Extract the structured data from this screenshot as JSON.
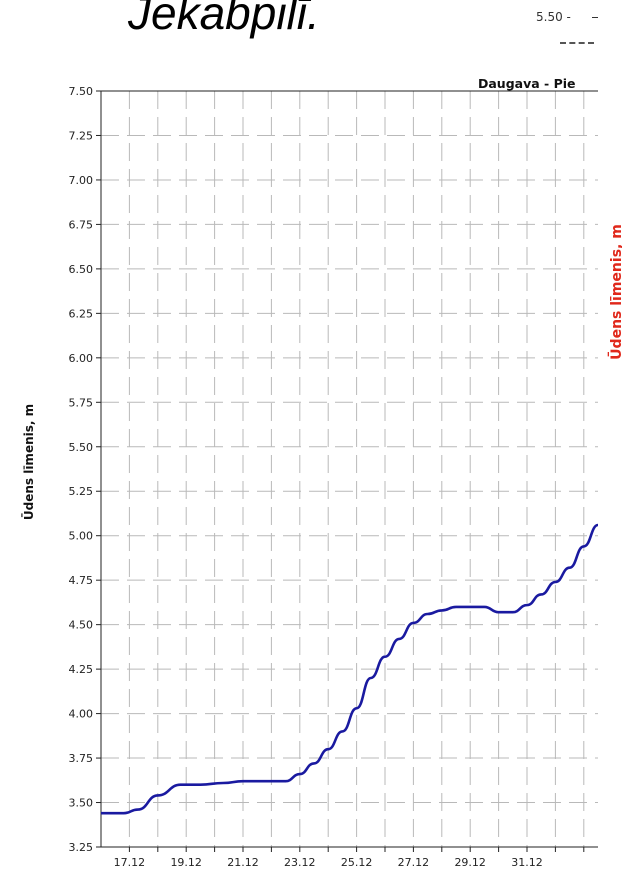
{
  "heading": "Jekabpilī.",
  "inset": {
    "tick_label": "5.50 -"
  },
  "chart_data": {
    "type": "line",
    "title": "Daugava - Pie",
    "ylabel": "Ūdens līmenis, m",
    "ylabel_right": "Ūdens līmenis, m",
    "xlabel": "",
    "ylim": [
      3.25,
      7.5
    ],
    "yticks": [
      "7.50",
      "7.25",
      "7.00",
      "6.75",
      "6.50",
      "6.25",
      "6.00",
      "5.75",
      "5.50",
      "5.25",
      "5.00",
      "4.75",
      "4.50",
      "4.25",
      "4.00",
      "3.75",
      "3.50",
      "3.25"
    ],
    "xlim": [
      16.0,
      33.5
    ],
    "x_ticks": [
      {
        "x": 17,
        "label": "17.12"
      },
      {
        "x": 19,
        "label": "19.12"
      },
      {
        "x": 21,
        "label": "21.12"
      },
      {
        "x": 23,
        "label": "23.12"
      },
      {
        "x": 25,
        "label": "25.12"
      },
      {
        "x": 27,
        "label": "27.12"
      },
      {
        "x": 29,
        "label": "29.12"
      },
      {
        "x": 31,
        "label": "31.12"
      }
    ],
    "grid": true,
    "series": [
      {
        "color": "#1a1aa0",
        "x": [
          16.0,
          16.8,
          17.3,
          18.0,
          18.8,
          19.5,
          20.3,
          21.0,
          21.8,
          22.5,
          23.0,
          23.5,
          24.0,
          24.5,
          25.0,
          25.5,
          26.0,
          26.5,
          27.0,
          27.5,
          28.0,
          28.5,
          29.0,
          29.5,
          30.0,
          30.5,
          31.0,
          31.5,
          32.0,
          32.5,
          33.0,
          33.5
        ],
        "y": [
          3.44,
          3.44,
          3.46,
          3.54,
          3.6,
          3.6,
          3.61,
          3.62,
          3.62,
          3.62,
          3.66,
          3.72,
          3.8,
          3.9,
          4.03,
          4.2,
          4.32,
          4.42,
          4.51,
          4.56,
          4.58,
          4.6,
          4.6,
          4.6,
          4.57,
          4.57,
          4.61,
          4.67,
          4.74,
          4.82,
          4.94,
          5.06
        ]
      }
    ]
  }
}
